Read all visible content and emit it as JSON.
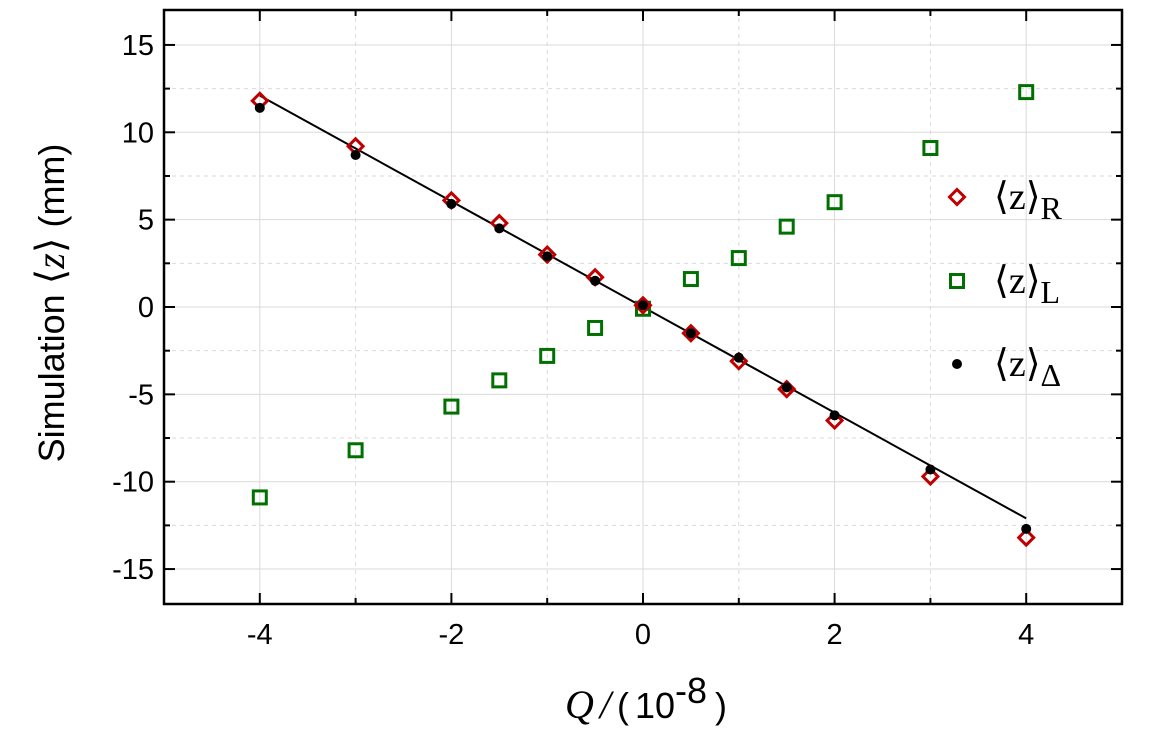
{
  "chart_data": {
    "type": "scatter",
    "xlim": [
      -5,
      5
    ],
    "ylim": [
      -17,
      17
    ],
    "x_ticks": [
      -4,
      -2,
      0,
      2,
      4
    ],
    "x_tick_labels": [
      "-4",
      "-2",
      "0",
      "2",
      "4"
    ],
    "y_ticks": [
      -15,
      -10,
      -5,
      0,
      5,
      10,
      15
    ],
    "y_tick_labels": [
      "-15",
      "-10",
      "-5",
      "0",
      "5",
      "10",
      "15"
    ],
    "grid": true,
    "legend_position": "right",
    "xlabel": {
      "symbol": "Q",
      "slash": "/",
      "open_paren": "(",
      "base": "10",
      "exponent": "-8",
      "close_paren": ")"
    },
    "ylabel": {
      "prefix": "Simulation ",
      "bra": "⟨",
      "symbol": "z",
      "ket": "⟩",
      "unit": " (mm)"
    },
    "series": [
      {
        "name": "R",
        "legend_symbol": "⟨z⟩",
        "legend_subscript": "R",
        "marker": "diamond-open",
        "color": "#c00000",
        "x": [
          -4,
          -3,
          -2,
          -1.5,
          -1,
          -0.5,
          0,
          0.5,
          1,
          1.5,
          2,
          3,
          4
        ],
        "y": [
          11.8,
          9.2,
          6.1,
          4.8,
          3.0,
          1.7,
          0.1,
          -1.5,
          -3.1,
          -4.7,
          -6.5,
          -9.7,
          -13.2
        ]
      },
      {
        "name": "L",
        "legend_symbol": "⟨z⟩",
        "legend_subscript": "L",
        "marker": "square-open",
        "color": "#007000",
        "x": [
          -4,
          -3,
          -2,
          -1.5,
          -1,
          -0.5,
          0,
          0.5,
          1,
          1.5,
          2,
          3,
          4
        ],
        "y": [
          -10.9,
          -8.2,
          -5.7,
          -4.2,
          -2.8,
          -1.2,
          -0.1,
          1.6,
          2.8,
          4.6,
          6.0,
          9.1,
          12.3
        ]
      },
      {
        "name": "Δ",
        "legend_symbol": "⟨z⟩",
        "legend_subscript": "Δ",
        "marker": "dot",
        "color": "#000000",
        "x": [
          -4,
          -3,
          -2,
          -1.5,
          -1,
          -0.5,
          0,
          0.5,
          1,
          1.5,
          2,
          3,
          4
        ],
        "y": [
          11.4,
          8.7,
          5.9,
          4.5,
          2.9,
          1.5,
          0.1,
          -1.5,
          -2.9,
          -4.6,
          -6.2,
          -9.3,
          -12.7
        ]
      }
    ],
    "fit_line": {
      "x": [
        -4,
        4
      ],
      "y": [
        12.1,
        -12.1
      ],
      "color": "#000000"
    }
  }
}
